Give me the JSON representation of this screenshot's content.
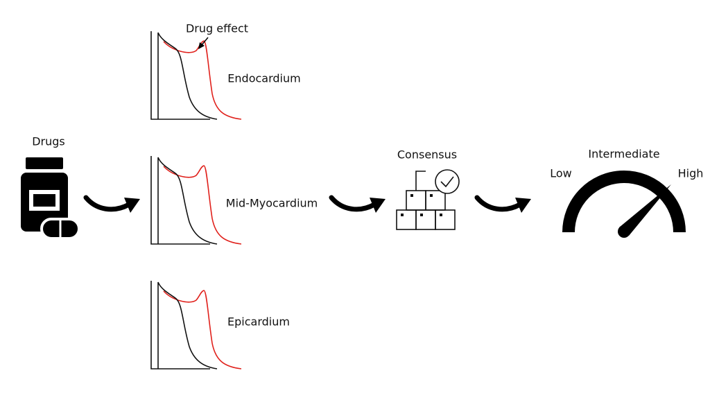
{
  "drugs": {
    "label": "Drugs"
  },
  "annotation": "Drug effect",
  "traces": [
    {
      "label": "Endocardium"
    },
    {
      "label": "Mid-Myocardium"
    },
    {
      "label": "Epicardium"
    }
  ],
  "consensus": {
    "label": "Consensus"
  },
  "gauge": {
    "low": "Low",
    "intermediate": "Intermediate",
    "high": "High"
  }
}
